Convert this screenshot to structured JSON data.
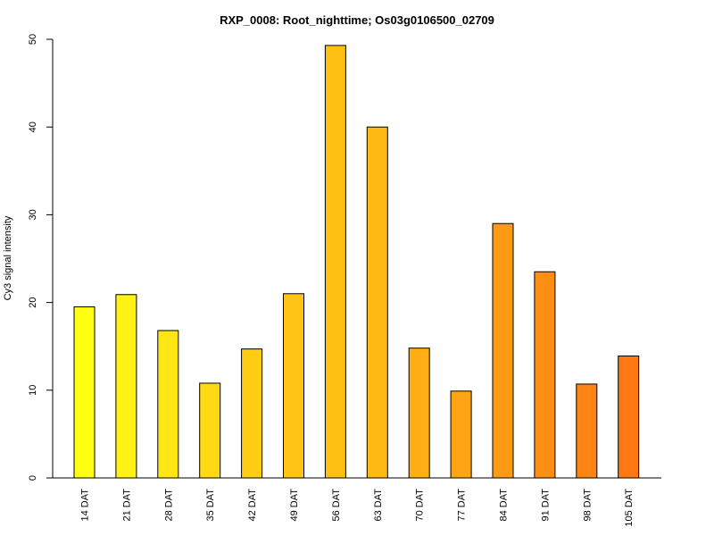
{
  "chart_data": {
    "type": "bar",
    "title": "RXP_0008: Root_nighttime; Os03g0106500_02709",
    "xlabel": "",
    "ylabel": "Cy3 signal intensity",
    "categories": [
      "14 DAT",
      "21 DAT",
      "28 DAT",
      "35 DAT",
      "42 DAT",
      "49 DAT",
      "56 DAT",
      "63 DAT",
      "70 DAT",
      "77 DAT",
      "84 DAT",
      "91 DAT",
      "98 DAT",
      "105 DAT"
    ],
    "values": [
      19.5,
      20.9,
      16.8,
      10.8,
      14.7,
      21.0,
      49.3,
      40.0,
      14.8,
      9.9,
      29.0,
      23.5,
      10.7,
      13.9
    ],
    "colors": [
      "#FFFF14",
      "#FFF214",
      "#FFE614",
      "#FFDA14",
      "#FFCE14",
      "#FFC414",
      "#FFC014",
      "#FFB914",
      "#FFAF14",
      "#FFA414",
      "#FF9A14",
      "#FF8F14",
      "#FF8414",
      "#FF7814"
    ],
    "ylim": [
      0,
      50
    ],
    "yticks": [
      0,
      10,
      20,
      30,
      40,
      50
    ],
    "grid": false,
    "legend": "none"
  }
}
